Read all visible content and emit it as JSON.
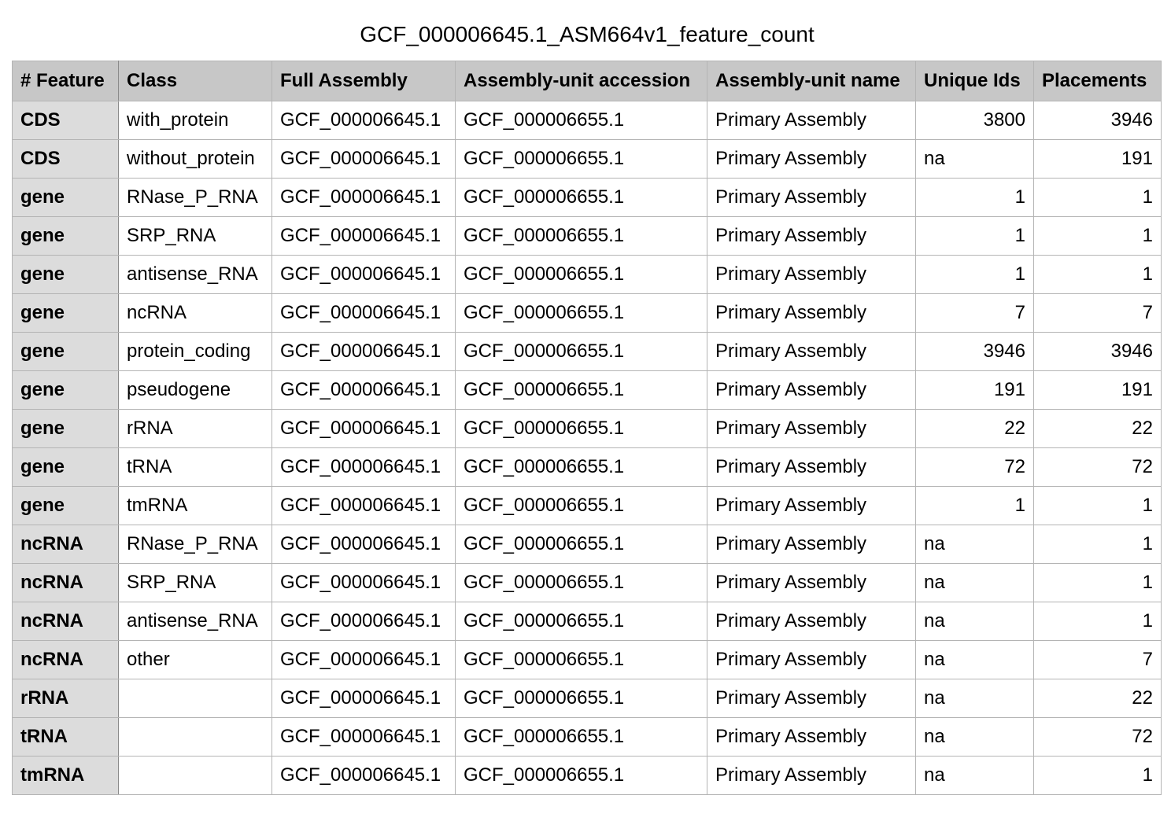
{
  "title": "GCF_000006645.1_ASM664v1_feature_count",
  "columns": [
    "# Feature",
    "Class",
    "Full Assembly",
    "Assembly-unit accession",
    "Assembly-unit name",
    "Unique Ids",
    "Placements"
  ],
  "rows": [
    [
      "CDS",
      "with_protein",
      "GCF_000006645.1",
      "GCF_000006655.1",
      "Primary Assembly",
      "3800",
      "3946"
    ],
    [
      "CDS",
      "without_protein",
      "GCF_000006645.1",
      "GCF_000006655.1",
      "Primary Assembly",
      "na",
      "191"
    ],
    [
      "gene",
      "RNase_P_RNA",
      "GCF_000006645.1",
      "GCF_000006655.1",
      "Primary Assembly",
      "1",
      "1"
    ],
    [
      "gene",
      "SRP_RNA",
      "GCF_000006645.1",
      "GCF_000006655.1",
      "Primary Assembly",
      "1",
      "1"
    ],
    [
      "gene",
      "antisense_RNA",
      "GCF_000006645.1",
      "GCF_000006655.1",
      "Primary Assembly",
      "1",
      "1"
    ],
    [
      "gene",
      "ncRNA",
      "GCF_000006645.1",
      "GCF_000006655.1",
      "Primary Assembly",
      "7",
      "7"
    ],
    [
      "gene",
      "protein_coding",
      "GCF_000006645.1",
      "GCF_000006655.1",
      "Primary Assembly",
      "3946",
      "3946"
    ],
    [
      "gene",
      "pseudogene",
      "GCF_000006645.1",
      "GCF_000006655.1",
      "Primary Assembly",
      "191",
      "191"
    ],
    [
      "gene",
      "rRNA",
      "GCF_000006645.1",
      "GCF_000006655.1",
      "Primary Assembly",
      "22",
      "22"
    ],
    [
      "gene",
      "tRNA",
      "GCF_000006645.1",
      "GCF_000006655.1",
      "Primary Assembly",
      "72",
      "72"
    ],
    [
      "gene",
      "tmRNA",
      "GCF_000006645.1",
      "GCF_000006655.1",
      "Primary Assembly",
      "1",
      "1"
    ],
    [
      "ncRNA",
      "RNase_P_RNA",
      "GCF_000006645.1",
      "GCF_000006655.1",
      "Primary Assembly",
      "na",
      "1"
    ],
    [
      "ncRNA",
      "SRP_RNA",
      "GCF_000006645.1",
      "GCF_000006655.1",
      "Primary Assembly",
      "na",
      "1"
    ],
    [
      "ncRNA",
      "antisense_RNA",
      "GCF_000006645.1",
      "GCF_000006655.1",
      "Primary Assembly",
      "na",
      "1"
    ],
    [
      "ncRNA",
      "other",
      "GCF_000006645.1",
      "GCF_000006655.1",
      "Primary Assembly",
      "na",
      "7"
    ],
    [
      "rRNA",
      "",
      "GCF_000006645.1",
      "GCF_000006655.1",
      "Primary Assembly",
      "na",
      "22"
    ],
    [
      "tRNA",
      "",
      "GCF_000006645.1",
      "GCF_000006655.1",
      "Primary Assembly",
      "na",
      "72"
    ],
    [
      "tmRNA",
      "",
      "GCF_000006645.1",
      "GCF_000006655.1",
      "Primary Assembly",
      "na",
      "1"
    ]
  ]
}
